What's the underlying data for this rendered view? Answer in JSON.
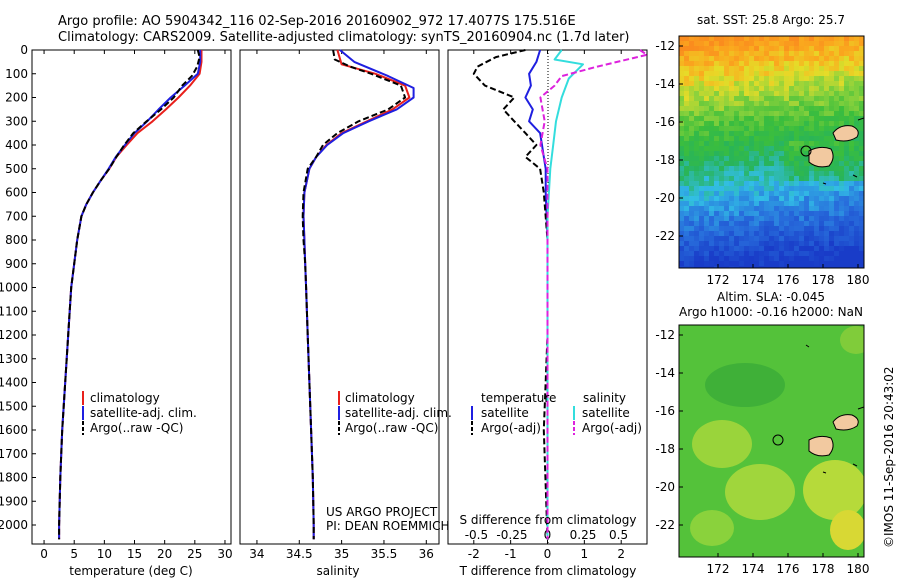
{
  "header": {
    "line1": "Argo profile: AO 5904342_116 02-Sep-2016 20160902_972 17.4077S 175.516E",
    "line2": "Climatology: CARS2009. Satellite-adjusted climatology: synTS_20160904.nc (1.7d later)"
  },
  "colors": {
    "climatology": "#e8201c",
    "satellite": "#1f1fe0",
    "argo": "#000000",
    "salinity_satellite": "#33dddd",
    "salinity_argo": "#dd22dd",
    "land": "#f2c9a0"
  },
  "chart_data": [
    {
      "id": "temperature",
      "type": "line",
      "xlabel": "temperature (deg C)",
      "ylabel": "",
      "xlim": [
        -2,
        31
      ],
      "ylim": [
        2080,
        0
      ],
      "xticks": [
        0,
        5,
        10,
        15,
        20,
        25,
        30
      ],
      "yticks": [
        0,
        100,
        200,
        300,
        400,
        500,
        600,
        700,
        800,
        900,
        1000,
        1100,
        1200,
        1300,
        1400,
        1500,
        1600,
        1700,
        1800,
        1900,
        2000
      ],
      "legend": [
        "climatology",
        "satellite-adj. clim.",
        "Argo(..raw -QC)"
      ],
      "legend_position": "lower-left",
      "series": [
        {
          "name": "climatology",
          "color": "#e8201c",
          "style": "solid",
          "points": [
            [
              26.1,
              0
            ],
            [
              26.1,
              50
            ],
            [
              25.8,
              100
            ],
            [
              24.2,
              150
            ],
            [
              22.3,
              200
            ],
            [
              20.2,
              250
            ],
            [
              18.0,
              300
            ],
            [
              15.5,
              350
            ],
            [
              13.7,
              400
            ],
            [
              12.0,
              450
            ],
            [
              10.8,
              500
            ],
            [
              9.4,
              550
            ],
            [
              8.1,
              600
            ],
            [
              7.0,
              650
            ],
            [
              6.2,
              700
            ],
            [
              5.5,
              800
            ],
            [
              5.0,
              900
            ],
            [
              4.5,
              1000
            ],
            [
              4.0,
              1200
            ],
            [
              3.5,
              1400
            ],
            [
              3.0,
              1600
            ],
            [
              2.7,
              1800
            ],
            [
              2.5,
              2000
            ],
            [
              2.5,
              2060
            ]
          ]
        },
        {
          "name": "satellite-adj. clim.",
          "color": "#1f1fe0",
          "style": "solid",
          "points": [
            [
              25.9,
              0
            ],
            [
              25.9,
              50
            ],
            [
              25.5,
              100
            ],
            [
              23.3,
              150
            ],
            [
              21.0,
              200
            ],
            [
              19.0,
              250
            ],
            [
              17.1,
              300
            ],
            [
              15.0,
              350
            ],
            [
              13.4,
              400
            ],
            [
              11.9,
              450
            ],
            [
              10.7,
              500
            ],
            [
              9.4,
              550
            ],
            [
              8.1,
              600
            ],
            [
              7.0,
              650
            ],
            [
              6.2,
              700
            ],
            [
              5.5,
              800
            ],
            [
              5.0,
              900
            ],
            [
              4.5,
              1000
            ],
            [
              4.0,
              1200
            ],
            [
              3.5,
              1400
            ],
            [
              3.0,
              1600
            ],
            [
              2.7,
              1800
            ],
            [
              2.5,
              2000
            ],
            [
              2.5,
              2060
            ]
          ]
        },
        {
          "name": "Argo(..raw -QC)",
          "color": "#000000",
          "style": "dashed",
          "points": [
            [
              25.5,
              0
            ],
            [
              25.8,
              30
            ],
            [
              25.4,
              70
            ],
            [
              24.5,
              110
            ],
            [
              22.9,
              150
            ],
            [
              21.5,
              200
            ],
            [
              19.4,
              250
            ],
            [
              17.0,
              300
            ],
            [
              14.8,
              350
            ],
            [
              13.3,
              400
            ],
            [
              12.0,
              450
            ],
            [
              10.8,
              500
            ],
            [
              9.4,
              550
            ],
            [
              8.1,
              600
            ],
            [
              7.0,
              650
            ],
            [
              6.2,
              700
            ],
            [
              5.5,
              800
            ],
            [
              5.0,
              900
            ],
            [
              4.5,
              1000
            ],
            [
              4.0,
              1200
            ],
            [
              3.5,
              1400
            ],
            [
              3.0,
              1600
            ],
            [
              2.7,
              1800
            ],
            [
              2.5,
              2000
            ],
            [
              2.5,
              2060
            ]
          ]
        }
      ]
    },
    {
      "id": "salinity",
      "type": "line",
      "xlabel": "salinity",
      "ylabel": "",
      "xlim": [
        33.8,
        36.15
      ],
      "ylim": [
        2080,
        0
      ],
      "xticks": [
        34,
        34.5,
        35,
        35.5,
        36
      ],
      "legend": [
        "climatology",
        "satellite-adj. clim.",
        "Argo(..raw -QC)"
      ],
      "legend_position": "lower-right",
      "annotation": [
        "US ARGO PROJECT",
        "PI: DEAN ROEMMICH"
      ],
      "series": [
        {
          "name": "climatology",
          "color": "#e8201c",
          "style": "solid",
          "points": [
            [
              34.95,
              0
            ],
            [
              35.0,
              60
            ],
            [
              35.4,
              100
            ],
            [
              35.75,
              150
            ],
            [
              35.8,
              200
            ],
            [
              35.6,
              250
            ],
            [
              35.3,
              300
            ],
            [
              35.0,
              350
            ],
            [
              34.82,
              400
            ],
            [
              34.7,
              450
            ],
            [
              34.62,
              500
            ],
            [
              34.56,
              600
            ],
            [
              34.55,
              700
            ],
            [
              34.56,
              800
            ],
            [
              34.57,
              900
            ],
            [
              34.58,
              1000
            ],
            [
              34.6,
              1200
            ],
            [
              34.62,
              1400
            ],
            [
              34.64,
              1600
            ],
            [
              34.66,
              1800
            ],
            [
              34.67,
              2000
            ],
            [
              34.67,
              2060
            ]
          ]
        },
        {
          "name": "satellite-adj. clim.",
          "color": "#1f1fe0",
          "style": "solid",
          "points": [
            [
              34.98,
              0
            ],
            [
              35.15,
              50
            ],
            [
              35.55,
              110
            ],
            [
              35.85,
              160
            ],
            [
              35.85,
              200
            ],
            [
              35.65,
              250
            ],
            [
              35.32,
              300
            ],
            [
              35.02,
              350
            ],
            [
              34.83,
              400
            ],
            [
              34.7,
              450
            ],
            [
              34.62,
              500
            ],
            [
              34.56,
              600
            ],
            [
              34.55,
              700
            ],
            [
              34.56,
              800
            ],
            [
              34.57,
              900
            ],
            [
              34.58,
              1000
            ],
            [
              34.6,
              1200
            ],
            [
              34.62,
              1400
            ],
            [
              34.64,
              1600
            ],
            [
              34.66,
              1800
            ],
            [
              34.67,
              2000
            ],
            [
              34.67,
              2060
            ]
          ]
        },
        {
          "name": "Argo(..raw -QC)",
          "color": "#000000",
          "style": "dashed",
          "points": [
            [
              34.9,
              0
            ],
            [
              34.92,
              40
            ],
            [
              35.1,
              70
            ],
            [
              35.35,
              100
            ],
            [
              35.7,
              150
            ],
            [
              35.75,
              200
            ],
            [
              35.55,
              250
            ],
            [
              35.2,
              300
            ],
            [
              34.95,
              350
            ],
            [
              34.78,
              400
            ],
            [
              34.7,
              450
            ],
            [
              34.6,
              500
            ],
            [
              34.55,
              600
            ],
            [
              34.54,
              700
            ],
            [
              34.55,
              800
            ],
            [
              34.57,
              900
            ],
            [
              34.58,
              1000
            ],
            [
              34.6,
              1200
            ],
            [
              34.62,
              1400
            ],
            [
              34.64,
              1600
            ],
            [
              34.66,
              1800
            ],
            [
              34.67,
              2000
            ],
            [
              34.67,
              2060
            ]
          ]
        }
      ]
    },
    {
      "id": "difference",
      "type": "line",
      "xlabel": "T difference from climatology",
      "xlabel2": "S difference from climatology",
      "xlim": [
        -2.7,
        2.7
      ],
      "xlim2": [
        -0.7,
        0.7
      ],
      "ylim": [
        2080,
        0
      ],
      "xticks": [
        -2,
        -1,
        0,
        1,
        2
      ],
      "xticks2": [
        -0.5,
        -0.25,
        0,
        0.25,
        0.5
      ],
      "legend_headers": [
        "temperature",
        "salinity"
      ],
      "legend": [
        "satellite",
        "Argo(-adj)",
        "satellite",
        "Argo(-adj)"
      ],
      "series": [
        {
          "name": "temperature satellite",
          "color": "#1f1fe0",
          "style": "solid",
          "points": [
            [
              -0.2,
              0
            ],
            [
              -0.3,
              50
            ],
            [
              -0.5,
              100
            ],
            [
              -0.45,
              150
            ],
            [
              -0.6,
              200
            ],
            [
              -0.4,
              250
            ],
            [
              -0.5,
              300
            ],
            [
              -0.2,
              350
            ],
            [
              -0.15,
              400
            ],
            [
              -0.1,
              450
            ],
            [
              -0.05,
              500
            ],
            [
              -0.05,
              600
            ],
            [
              0,
              800
            ],
            [
              0,
              1200
            ],
            [
              0,
              1600
            ],
            [
              0,
              2060
            ]
          ]
        },
        {
          "name": "temperature Argo(-adj)",
          "color": "#000000",
          "style": "dashed",
          "points": [
            [
              -0.6,
              0
            ],
            [
              -1.4,
              30
            ],
            [
              -1.9,
              70
            ],
            [
              -2.0,
              100
            ],
            [
              -1.7,
              150
            ],
            [
              -0.9,
              200
            ],
            [
              -1.2,
              250
            ],
            [
              -0.9,
              300
            ],
            [
              -0.6,
              350
            ],
            [
              -0.3,
              400
            ],
            [
              -0.6,
              450
            ],
            [
              -0.2,
              500
            ],
            [
              -0.1,
              600
            ],
            [
              0,
              800
            ],
            [
              0,
              1200
            ],
            [
              -0.1,
              1600
            ],
            [
              0,
              2060
            ]
          ]
        },
        {
          "name": "salinity satellite",
          "color": "#33dddd",
          "style": "solid",
          "points": [
            [
              0.1,
              0
            ],
            [
              0.05,
              40
            ],
            [
              0.25,
              60
            ],
            [
              0.15,
              120
            ],
            [
              0.1,
              200
            ],
            [
              0.06,
              300
            ],
            [
              0.04,
              400
            ],
            [
              0.02,
              500
            ],
            [
              0,
              700
            ],
            [
              0,
              1200
            ],
            [
              0,
              2060
            ]
          ]
        },
        {
          "name": "salinity Argo(-adj)",
          "color": "#dd22dd",
          "style": "dashed",
          "points": [
            [
              0.65,
              0
            ],
            [
              0.7,
              20
            ],
            [
              0.35,
              70
            ],
            [
              0.1,
              110
            ],
            [
              0.05,
              150
            ],
            [
              -0.05,
              200
            ],
            [
              -0.02,
              300
            ],
            [
              -0.05,
              400
            ],
            [
              0.0,
              500
            ],
            [
              0,
              700
            ],
            [
              0,
              1200
            ],
            [
              0,
              2060
            ]
          ]
        }
      ]
    }
  ],
  "sst_map": {
    "title": "sat. SST: 25.8 Argo: 25.7",
    "yticks": [
      "-12",
      "-14",
      "-16",
      "-18",
      "-20",
      "-22"
    ],
    "xticks": [
      "172",
      "174",
      "176",
      "178",
      "180"
    ]
  },
  "sla_map": {
    "title1": "Altim. SLA: -0.045",
    "title2": "Argo h1000: -0.16 h2000: NaN",
    "yticks": [
      "-12",
      "-14",
      "-16",
      "-18",
      "-20",
      "-22"
    ],
    "xticks": [
      "172",
      "174",
      "176",
      "178",
      "180"
    ]
  },
  "credit": "©IMOS 11-Sep-2016 20:43:02"
}
